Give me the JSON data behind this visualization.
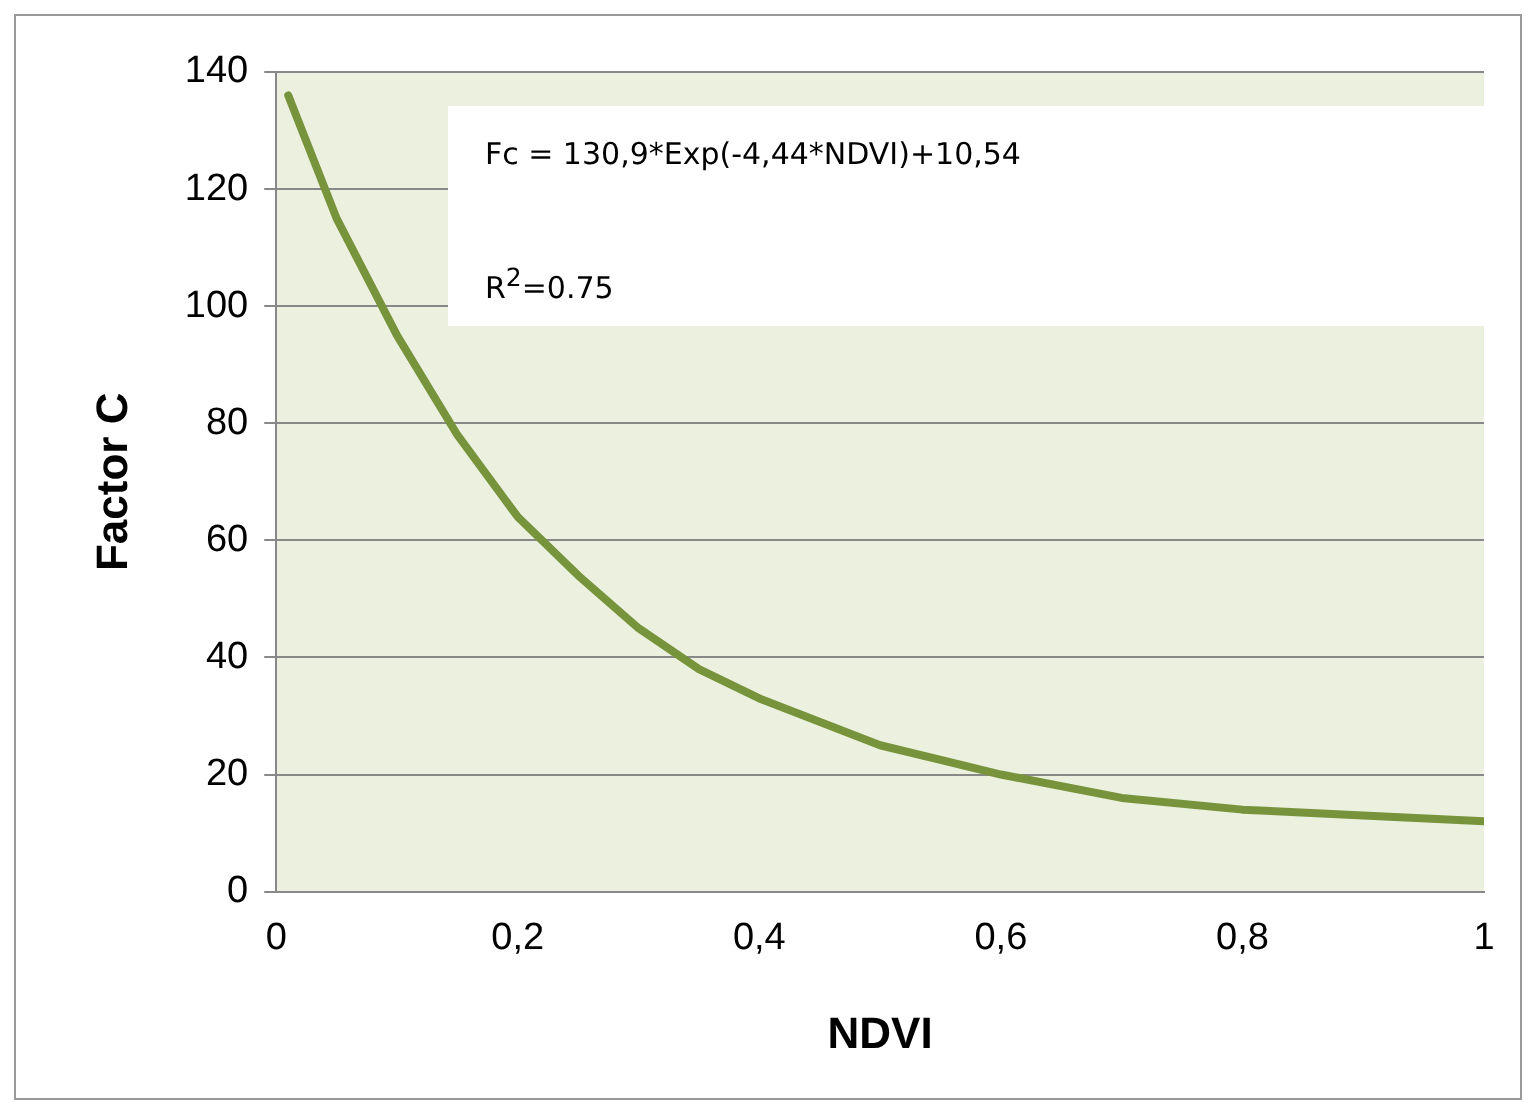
{
  "chart_data": {
    "type": "line",
    "xlabel": "NDVI",
    "ylabel": "Factor C",
    "annotations": [
      "Fc = 130,9*Exp(-4,44*NDVI)+10,54",
      "R$^{2}$=0.75"
    ],
    "x": [
      0.01,
      0.05,
      0.1,
      0.15,
      0.2,
      0.25,
      0.3,
      0.35,
      0.4,
      0.5,
      0.6,
      0.7,
      0.8,
      0.9,
      1.0
    ],
    "series": [
      {
        "color": "#77933c",
        "values": [
          136,
          115,
          95,
          78,
          64,
          54,
          45,
          38,
          33,
          25,
          20,
          16,
          14,
          13,
          12
        ]
      }
    ],
    "xlim": [
      0,
      1
    ],
    "xticks": [
      0,
      {
        "value": 0.2,
        "label": "0,2"
      },
      {
        "value": 0.4,
        "label": "0,4"
      },
      {
        "value": 0.6,
        "label": "0,6"
      },
      {
        "value": 0.8,
        "label": "0,8"
      },
      1
    ],
    "ylim": [
      0,
      140
    ],
    "yticks": [
      0,
      20,
      40,
      60,
      80,
      100,
      120,
      140
    ],
    "grid": "y",
    "legend": false,
    "marker": "none",
    "line_style": "solid"
  }
}
